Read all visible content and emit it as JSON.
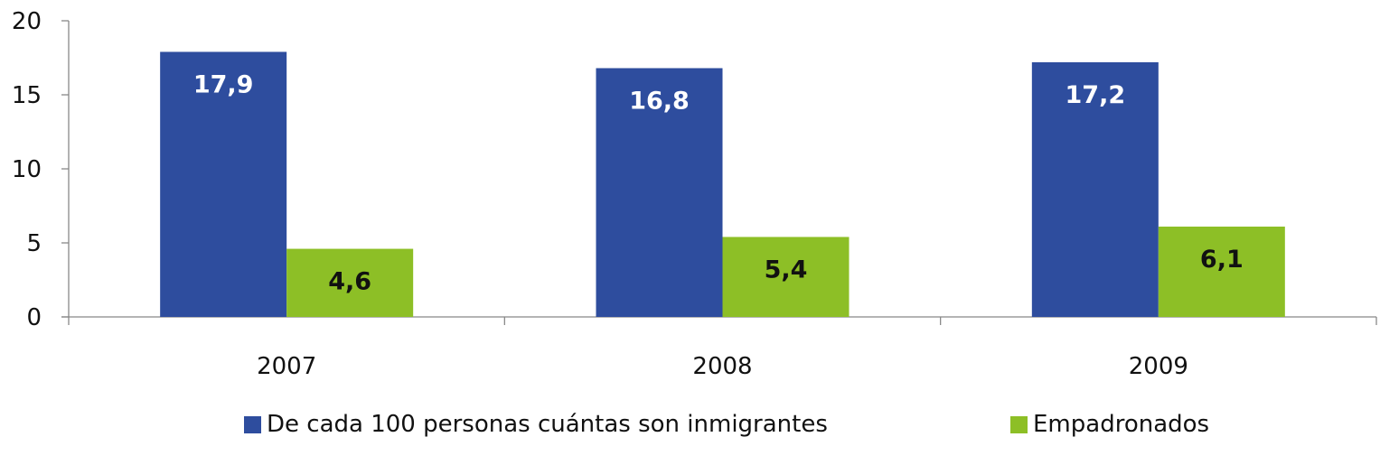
{
  "chart_data": {
    "type": "bar",
    "categories": [
      "2007",
      "2008",
      "2009"
    ],
    "series": [
      {
        "name": "De cada 100 personas cuántas son inmigrantes",
        "values": [
          17.9,
          16.8,
          17.2
        ],
        "labels": [
          "17,9",
          "16,8",
          "17,2"
        ],
        "color": "#2E4D9E",
        "label_color": "#ffffff"
      },
      {
        "name": "Empadronados",
        "values": [
          4.6,
          5.4,
          6.1
        ],
        "labels": [
          "4,6",
          "5,4",
          "6,1"
        ],
        "color": "#8DBF26",
        "label_color": "#111111"
      }
    ],
    "yticks": [
      "0",
      "5",
      "10",
      "15",
      "20"
    ],
    "ylim": [
      0,
      20
    ],
    "title": "",
    "xlabel": "",
    "ylabel": "",
    "grid": false,
    "legend_position": "bottom"
  }
}
